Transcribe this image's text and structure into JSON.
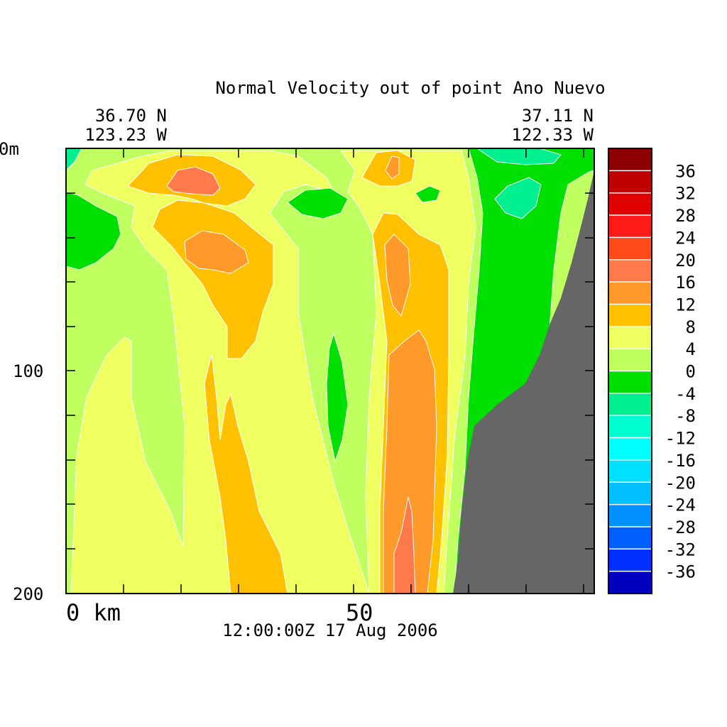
{
  "chart_data": {
    "type": "heatmap",
    "title": "Normal Velocity out of point Ano Nuevo",
    "timestamp": "12:00:00Z  17 Aug 2006",
    "corners": {
      "left_lat": "36.70 N",
      "left_lon": "123.23 W",
      "right_lat": "37.11 N",
      "right_lon": "122.33 W"
    },
    "x_axis": {
      "tick_labels": [
        {
          "value": 0,
          "text": "0 km"
        },
        {
          "value": 50,
          "text": "50"
        }
      ],
      "range": [
        0,
        92
      ]
    },
    "y_axis": {
      "tick_labels": [
        {
          "value": 0,
          "text": "0m"
        },
        {
          "value": 100,
          "text": "100"
        },
        {
          "value": 200,
          "text": "200"
        }
      ],
      "range": [
        0,
        200
      ],
      "inverted": true
    },
    "colorbar": {
      "levels": [
        "36",
        "32",
        "28",
        "24",
        "20",
        "16",
        "12",
        "8",
        "4",
        "0",
        "-4",
        "-8",
        "-12",
        "-16",
        "-20",
        "-24",
        "-28",
        "-32",
        "-36"
      ],
      "colors": [
        "#8b0000",
        "#c00000",
        "#e00000",
        "#ff1a1a",
        "#ff4a1a",
        "#ff7a4a",
        "#ff9a2a",
        "#ffc000",
        "#f0ff60",
        "#c0ff60",
        "#00e000",
        "#00f090",
        "#00ffd0",
        "#00ffff",
        "#00e0ff",
        "#00c0ff",
        "#0090ff",
        "#0060ff",
        "#0030ff",
        "#0000c0"
      ]
    },
    "land_color": "#666666"
  }
}
